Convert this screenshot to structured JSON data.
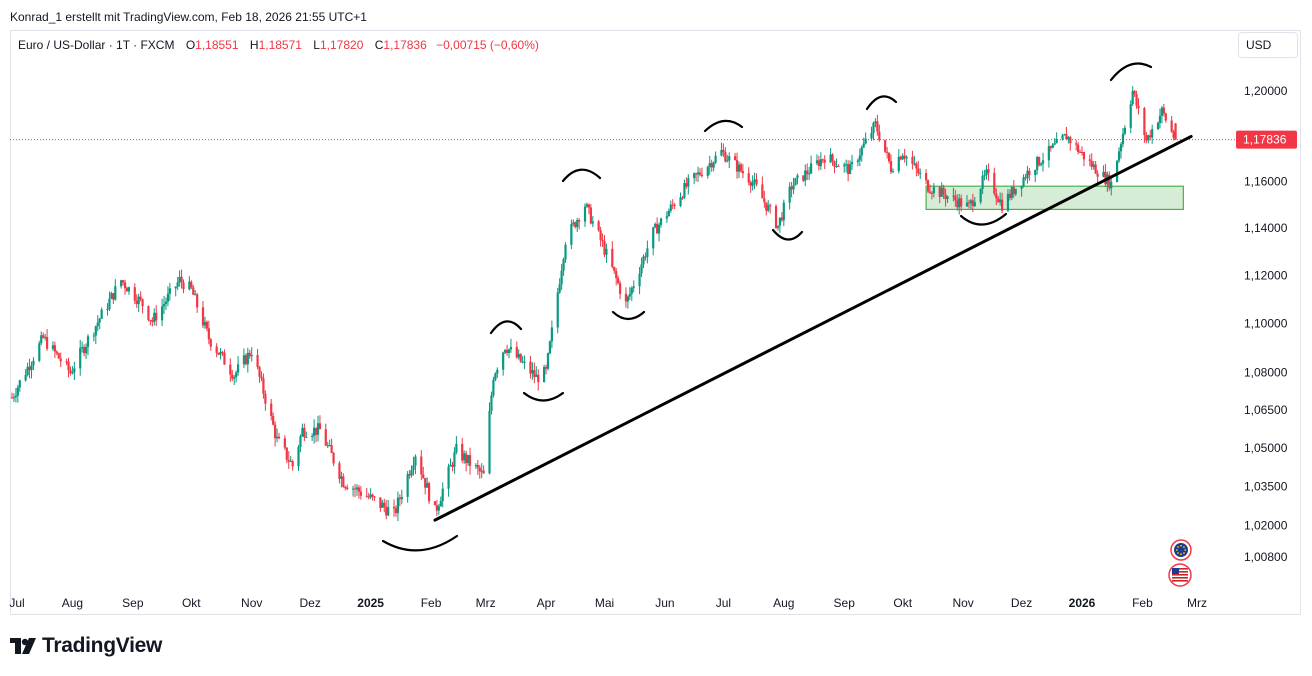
{
  "header": {
    "credit": "Konrad_1 erstellt mit TradingView.com, Feb 18, 2026 21:55 UTC+1"
  },
  "legend": {
    "symbol": "Euro / US-Dollar · 1T · FXCM",
    "open_label": "O",
    "open": "1,18551",
    "high_label": "H",
    "high": "1,18571",
    "low_label": "L",
    "low": "1,17820",
    "close_label": "C",
    "close": "1,17836",
    "change": "−0,00715 (−0,60%)"
  },
  "currency_button": "USD",
  "price_label": "1,17836",
  "footer": {
    "brand": "TradingView"
  },
  "colors": {
    "up": "#089981",
    "down": "#f23645",
    "zone": "#c8e6c9",
    "zone_border": "#4caf50",
    "trendline": "#000000",
    "grid_text": "#131722"
  },
  "chart_data": {
    "type": "candlestick",
    "instrument": "EUR/USD",
    "timeframe": "1T",
    "y_axis": {
      "scale": "log",
      "ticks": [
        1.2,
        1.16,
        1.14,
        1.12,
        1.1,
        1.08,
        1.065,
        1.05,
        1.035,
        1.02,
        1.008
      ],
      "tick_labels": [
        "1,20000",
        "1,16000",
        "1,14000",
        "1,12000",
        "1,10000",
        "1,08000",
        "1,06500",
        "1,05000",
        "1,03500",
        "1,02000",
        "1,00800"
      ]
    },
    "x_axis": {
      "labels": [
        "Jul",
        "Aug",
        "Sep",
        "Okt",
        "Nov",
        "Dez",
        "2025",
        "Feb",
        "Mrz",
        "Apr",
        "Mai",
        "Jun",
        "Jul",
        "Aug",
        "Sep",
        "Okt",
        "Nov",
        "Dez",
        "2026",
        "Feb",
        "Mrz"
      ],
      "bold": [
        "2025",
        "2026"
      ]
    },
    "price_path": [
      [
        "2024-07-01",
        1.07
      ],
      [
        "2024-07-17",
        1.094
      ],
      [
        "2024-07-31",
        1.08
      ],
      [
        "2024-08-08",
        1.092
      ],
      [
        "2024-08-26",
        1.118
      ],
      [
        "2024-09-06",
        1.108
      ],
      [
        "2024-09-11",
        1.101
      ],
      [
        "2024-09-25",
        1.118
      ],
      [
        "2024-10-01",
        1.114
      ],
      [
        "2024-10-10",
        1.094
      ],
      [
        "2024-10-23",
        1.079
      ],
      [
        "2024-11-01",
        1.089
      ],
      [
        "2024-11-14",
        1.053
      ],
      [
        "2024-11-22",
        1.043
      ],
      [
        "2024-11-27",
        1.057
      ],
      [
        "2024-12-06",
        1.057
      ],
      [
        "2024-12-18",
        1.037
      ],
      [
        "2025-01-10",
        1.026
      ],
      [
        "2025-01-13",
        1.024
      ],
      [
        "2025-01-24",
        1.048
      ],
      [
        "2025-02-03",
        1.025
      ],
      [
        "2025-02-14",
        1.049
      ],
      [
        "2025-02-28",
        1.039
      ],
      [
        "2025-03-05",
        1.079
      ],
      [
        "2025-03-11",
        1.091
      ],
      [
        "2025-03-27",
        1.078
      ],
      [
        "2025-04-01",
        1.08
      ],
      [
        "2025-04-11",
        1.135
      ],
      [
        "2025-04-21",
        1.15
      ],
      [
        "2025-04-30",
        1.133
      ],
      [
        "2025-05-12",
        1.108
      ],
      [
        "2025-05-26",
        1.138
      ],
      [
        "2025-06-12",
        1.158
      ],
      [
        "2025-06-30",
        1.173
      ],
      [
        "2025-07-16",
        1.16
      ],
      [
        "2025-07-29",
        1.141
      ],
      [
        "2025-08-05",
        1.158
      ],
      [
        "2025-08-22",
        1.171
      ],
      [
        "2025-09-04",
        1.165
      ],
      [
        "2025-09-17",
        1.185
      ],
      [
        "2025-09-25",
        1.166
      ],
      [
        "2025-10-01",
        1.173
      ],
      [
        "2025-10-14",
        1.158
      ],
      [
        "2025-11-04",
        1.149
      ],
      [
        "2025-11-13",
        1.163
      ],
      [
        "2025-11-21",
        1.15
      ],
      [
        "2025-12-05",
        1.165
      ],
      [
        "2025-12-24",
        1.18
      ],
      [
        "2026-01-05",
        1.168
      ],
      [
        "2026-01-16",
        1.159
      ],
      [
        "2026-01-27",
        1.2
      ],
      [
        "2026-02-03",
        1.178
      ],
      [
        "2026-02-11",
        1.191
      ],
      [
        "2026-02-18",
        1.178
      ]
    ],
    "last": {
      "open": 1.18551,
      "high": 1.18571,
      "low": 1.1782,
      "close": 1.17836
    },
    "annotations": {
      "trendline": [
        [
          "2025-02-03",
          1.022
        ],
        [
          "2026-02-26",
          1.178
        ]
      ],
      "support_zone": {
        "x_from": "2025-10-13",
        "x_to": "2026-02-22",
        "y_from": 1.148,
        "y_to": 1.158
      },
      "swing_arcs": [
        "low 2025-01",
        "high 2025-03",
        "low 2025-04",
        "high 2025-04",
        "low 2025-05",
        "high 2025-07",
        "low 2025-08",
        "high 2025-09",
        "low 2025-11",
        "high 2026-01"
      ]
    }
  }
}
